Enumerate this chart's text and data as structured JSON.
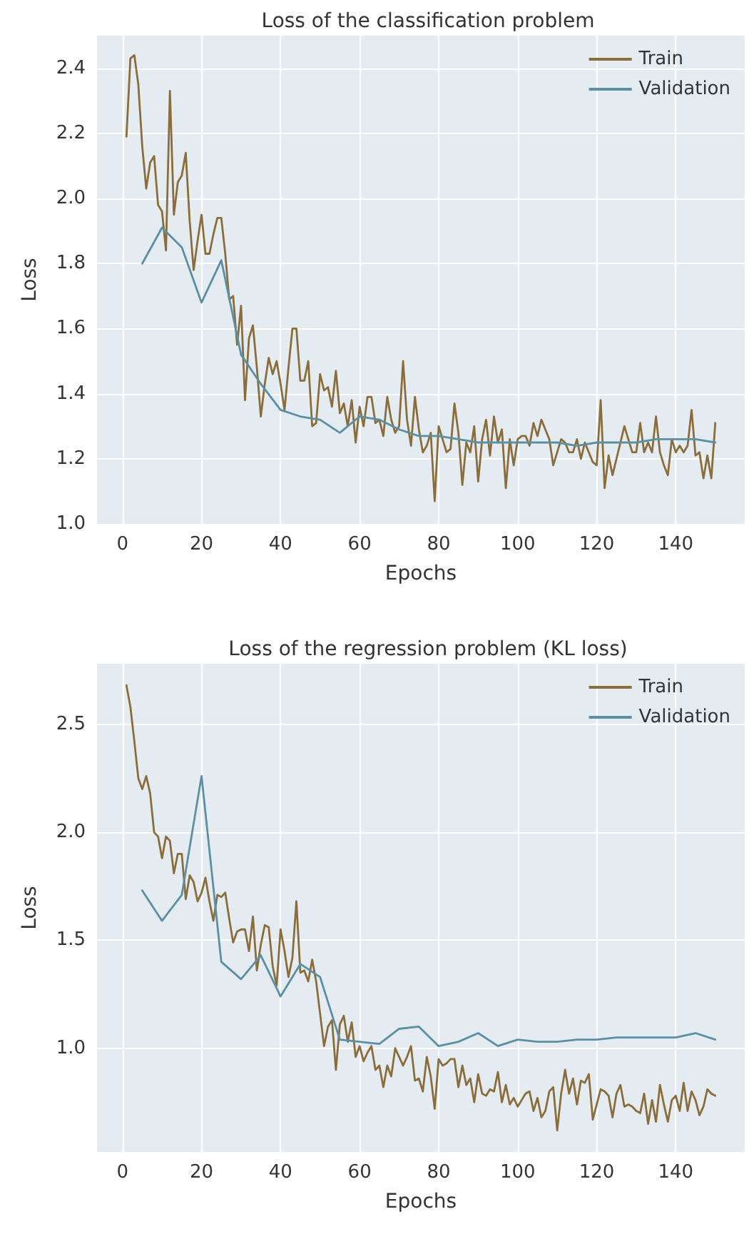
{
  "chart_data": [
    {
      "type": "line",
      "title": "Loss of the classification problem",
      "xlabel": "Epochs",
      "ylabel": "Loss",
      "x": [
        1,
        2,
        3,
        4,
        5,
        6,
        7,
        8,
        9,
        10,
        11,
        12,
        13,
        14,
        15,
        16,
        17,
        18,
        19,
        20,
        21,
        22,
        23,
        24,
        25,
        26,
        27,
        28,
        29,
        30,
        31,
        32,
        33,
        34,
        35,
        36,
        37,
        38,
        39,
        40,
        41,
        42,
        43,
        44,
        45,
        46,
        47,
        48,
        49,
        50,
        51,
        52,
        53,
        54,
        55,
        56,
        57,
        58,
        59,
        60,
        61,
        62,
        63,
        64,
        65,
        66,
        67,
        68,
        69,
        70,
        71,
        72,
        73,
        74,
        75,
        76,
        77,
        78,
        79,
        80,
        81,
        82,
        83,
        84,
        85,
        86,
        87,
        88,
        89,
        90,
        91,
        92,
        93,
        94,
        95,
        96,
        97,
        98,
        99,
        100,
        101,
        102,
        103,
        104,
        105,
        106,
        107,
        108,
        109,
        110,
        111,
        112,
        113,
        114,
        115,
        116,
        117,
        118,
        119,
        120,
        121,
        122,
        123,
        124,
        125,
        126,
        127,
        128,
        129,
        130,
        131,
        132,
        133,
        134,
        135,
        136,
        137,
        138,
        139,
        140,
        141,
        142,
        143,
        144,
        145,
        146,
        147,
        148,
        149,
        150
      ],
      "series": [
        {
          "name": "Train",
          "color": "#8a6d3b",
          "values": [
            2.19,
            2.43,
            2.44,
            2.35,
            2.16,
            2.03,
            2.11,
            2.13,
            1.98,
            1.96,
            1.84,
            2.33,
            1.95,
            2.05,
            2.07,
            2.14,
            1.93,
            1.78,
            1.87,
            1.95,
            1.83,
            1.83,
            1.89,
            1.94,
            1.94,
            1.83,
            1.69,
            1.7,
            1.55,
            1.67,
            1.38,
            1.57,
            1.61,
            1.48,
            1.33,
            1.43,
            1.51,
            1.46,
            1.5,
            1.43,
            1.35,
            1.48,
            1.6,
            1.6,
            1.44,
            1.44,
            1.5,
            1.3,
            1.31,
            1.46,
            1.41,
            1.42,
            1.36,
            1.47,
            1.34,
            1.37,
            1.3,
            1.38,
            1.25,
            1.36,
            1.3,
            1.39,
            1.39,
            1.31,
            1.32,
            1.27,
            1.39,
            1.32,
            1.28,
            1.3,
            1.5,
            1.32,
            1.24,
            1.39,
            1.29,
            1.22,
            1.24,
            1.28,
            1.07,
            1.3,
            1.26,
            1.22,
            1.23,
            1.37,
            1.28,
            1.12,
            1.25,
            1.22,
            1.3,
            1.13,
            1.26,
            1.32,
            1.21,
            1.33,
            1.25,
            1.29,
            1.11,
            1.26,
            1.18,
            1.26,
            1.27,
            1.27,
            1.24,
            1.31,
            1.27,
            1.32,
            1.29,
            1.26,
            1.18,
            1.22,
            1.26,
            1.25,
            1.22,
            1.22,
            1.26,
            1.2,
            1.25,
            1.22,
            1.19,
            1.18,
            1.38,
            1.11,
            1.21,
            1.15,
            1.2,
            1.25,
            1.3,
            1.26,
            1.22,
            1.22,
            1.31,
            1.22,
            1.25,
            1.22,
            1.33,
            1.22,
            1.18,
            1.15,
            1.26,
            1.22,
            1.24,
            1.22,
            1.24,
            1.35,
            1.21,
            1.22,
            1.14,
            1.21,
            1.14,
            1.31
          ]
        },
        {
          "name": "Validation",
          "color": "#5b8fa3",
          "x": [
            5,
            10,
            15,
            20,
            25,
            30,
            35,
            40,
            45,
            50,
            55,
            60,
            65,
            70,
            75,
            80,
            85,
            90,
            95,
            100,
            105,
            110,
            115,
            120,
            125,
            130,
            135,
            140,
            145,
            150
          ],
          "values": [
            1.8,
            1.91,
            1.85,
            1.68,
            1.81,
            1.52,
            1.43,
            1.35,
            1.33,
            1.32,
            1.28,
            1.33,
            1.32,
            1.29,
            1.27,
            1.27,
            1.26,
            1.25,
            1.25,
            1.25,
            1.25,
            1.25,
            1.24,
            1.25,
            1.25,
            1.25,
            1.26,
            1.26,
            1.26,
            1.25
          ]
        }
      ],
      "xlim": [
        -6.45,
        157.45
      ],
      "xticks": [
        0,
        20,
        40,
        60,
        80,
        100,
        120,
        140
      ],
      "ylim": [
        1.0,
        2.5
      ],
      "yticks": [
        {
          "value": 1.0,
          "label": "1.0"
        },
        {
          "value": 1.2,
          "label": "1.2"
        },
        {
          "value": 1.4,
          "label": "1.4"
        },
        {
          "value": 1.6,
          "label": "1.6"
        },
        {
          "value": 1.8,
          "label": "1.8"
        },
        {
          "value": 2.0,
          "label": "2.0"
        },
        {
          "value": 2.2,
          "label": "2.2"
        },
        {
          "value": 2.4,
          "label": "2.4"
        }
      ],
      "grid": true,
      "legend": "top right",
      "line_style": "solid"
    },
    {
      "type": "line",
      "title": "Loss of the regression problem (KL loss)",
      "xlabel": "Epochs",
      "ylabel": "Loss",
      "x": [
        1,
        2,
        3,
        4,
        5,
        6,
        7,
        8,
        9,
        10,
        11,
        12,
        13,
        14,
        15,
        16,
        17,
        18,
        19,
        20,
        21,
        22,
        23,
        24,
        25,
        26,
        27,
        28,
        29,
        30,
        31,
        32,
        33,
        34,
        35,
        36,
        37,
        38,
        39,
        40,
        41,
        42,
        43,
        44,
        45,
        46,
        47,
        48,
        49,
        50,
        51,
        52,
        53,
        54,
        55,
        56,
        57,
        58,
        59,
        60,
        61,
        62,
        63,
        64,
        65,
        66,
        67,
        68,
        69,
        70,
        71,
        72,
        73,
        74,
        75,
        76,
        77,
        78,
        79,
        80,
        81,
        82,
        83,
        84,
        85,
        86,
        87,
        88,
        89,
        90,
        91,
        92,
        93,
        94,
        95,
        96,
        97,
        98,
        99,
        100,
        101,
        102,
        103,
        104,
        105,
        106,
        107,
        108,
        109,
        110,
        111,
        112,
        113,
        114,
        115,
        116,
        117,
        118,
        119,
        120,
        121,
        122,
        123,
        124,
        125,
        126,
        127,
        128,
        129,
        130,
        131,
        132,
        133,
        134,
        135,
        136,
        137,
        138,
        139,
        140,
        141,
        142,
        143,
        144,
        145,
        146,
        147,
        148,
        149,
        150
      ],
      "series": [
        {
          "name": "Train",
          "color": "#8a6d3b",
          "values": [
            2.68,
            2.58,
            2.42,
            2.25,
            2.2,
            2.26,
            2.18,
            2.0,
            1.98,
            1.88,
            1.98,
            1.96,
            1.81,
            1.9,
            1.9,
            1.69,
            1.8,
            1.77,
            1.68,
            1.72,
            1.79,
            1.68,
            1.59,
            1.71,
            1.7,
            1.72,
            1.6,
            1.49,
            1.54,
            1.55,
            1.55,
            1.45,
            1.61,
            1.36,
            1.48,
            1.57,
            1.56,
            1.38,
            1.29,
            1.55,
            1.45,
            1.33,
            1.42,
            1.68,
            1.35,
            1.36,
            1.31,
            1.41,
            1.31,
            1.16,
            1.01,
            1.1,
            1.13,
            0.9,
            1.11,
            1.15,
            1.03,
            1.12,
            0.96,
            1.01,
            0.94,
            0.98,
            1.01,
            0.9,
            0.92,
            0.82,
            0.92,
            0.87,
            1.0,
            0.96,
            0.92,
            0.96,
            1.01,
            0.85,
            0.86,
            0.8,
            0.96,
            0.87,
            0.72,
            0.95,
            0.92,
            0.93,
            0.95,
            0.95,
            0.82,
            0.92,
            0.83,
            0.86,
            0.75,
            0.88,
            0.79,
            0.78,
            0.81,
            0.8,
            0.89,
            0.75,
            0.83,
            0.74,
            0.77,
            0.73,
            0.76,
            0.79,
            0.8,
            0.71,
            0.77,
            0.68,
            0.71,
            0.8,
            0.82,
            0.62,
            0.79,
            0.9,
            0.79,
            0.86,
            0.74,
            0.85,
            0.84,
            0.88,
            0.67,
            0.74,
            0.81,
            0.8,
            0.78,
            0.68,
            0.79,
            0.83,
            0.73,
            0.74,
            0.73,
            0.71,
            0.7,
            0.79,
            0.65,
            0.76,
            0.66,
            0.83,
            0.74,
            0.66,
            0.76,
            0.78,
            0.71,
            0.84,
            0.71,
            0.8,
            0.76,
            0.69,
            0.73,
            0.81,
            0.79,
            0.78
          ]
        },
        {
          "name": "Validation",
          "color": "#5b8fa3",
          "x": [
            5,
            10,
            15,
            20,
            25,
            30,
            35,
            40,
            45,
            50,
            55,
            60,
            65,
            70,
            75,
            80,
            85,
            90,
            95,
            100,
            105,
            110,
            115,
            120,
            125,
            130,
            135,
            140,
            145,
            150
          ],
          "values": [
            1.73,
            1.59,
            1.71,
            2.26,
            1.4,
            1.32,
            1.43,
            1.24,
            1.39,
            1.33,
            1.04,
            1.03,
            1.02,
            1.09,
            1.1,
            1.01,
            1.03,
            1.07,
            1.01,
            1.04,
            1.03,
            1.03,
            1.04,
            1.04,
            1.05,
            1.05,
            1.05,
            1.05,
            1.07,
            1.04
          ]
        }
      ],
      "xlim": [
        -6.45,
        157.45
      ],
      "xticks": [
        0,
        20,
        40,
        60,
        80,
        100,
        120,
        140
      ],
      "ylim": [
        0.52,
        2.78
      ],
      "yticks": [
        {
          "value": 1.0,
          "label": "1.0"
        },
        {
          "value": 1.5,
          "label": "1.5"
        },
        {
          "value": 2.0,
          "label": "2.0"
        },
        {
          "value": 2.5,
          "label": "2.5"
        }
      ],
      "grid": true,
      "legend": "top right",
      "line_style": "solid"
    }
  ]
}
